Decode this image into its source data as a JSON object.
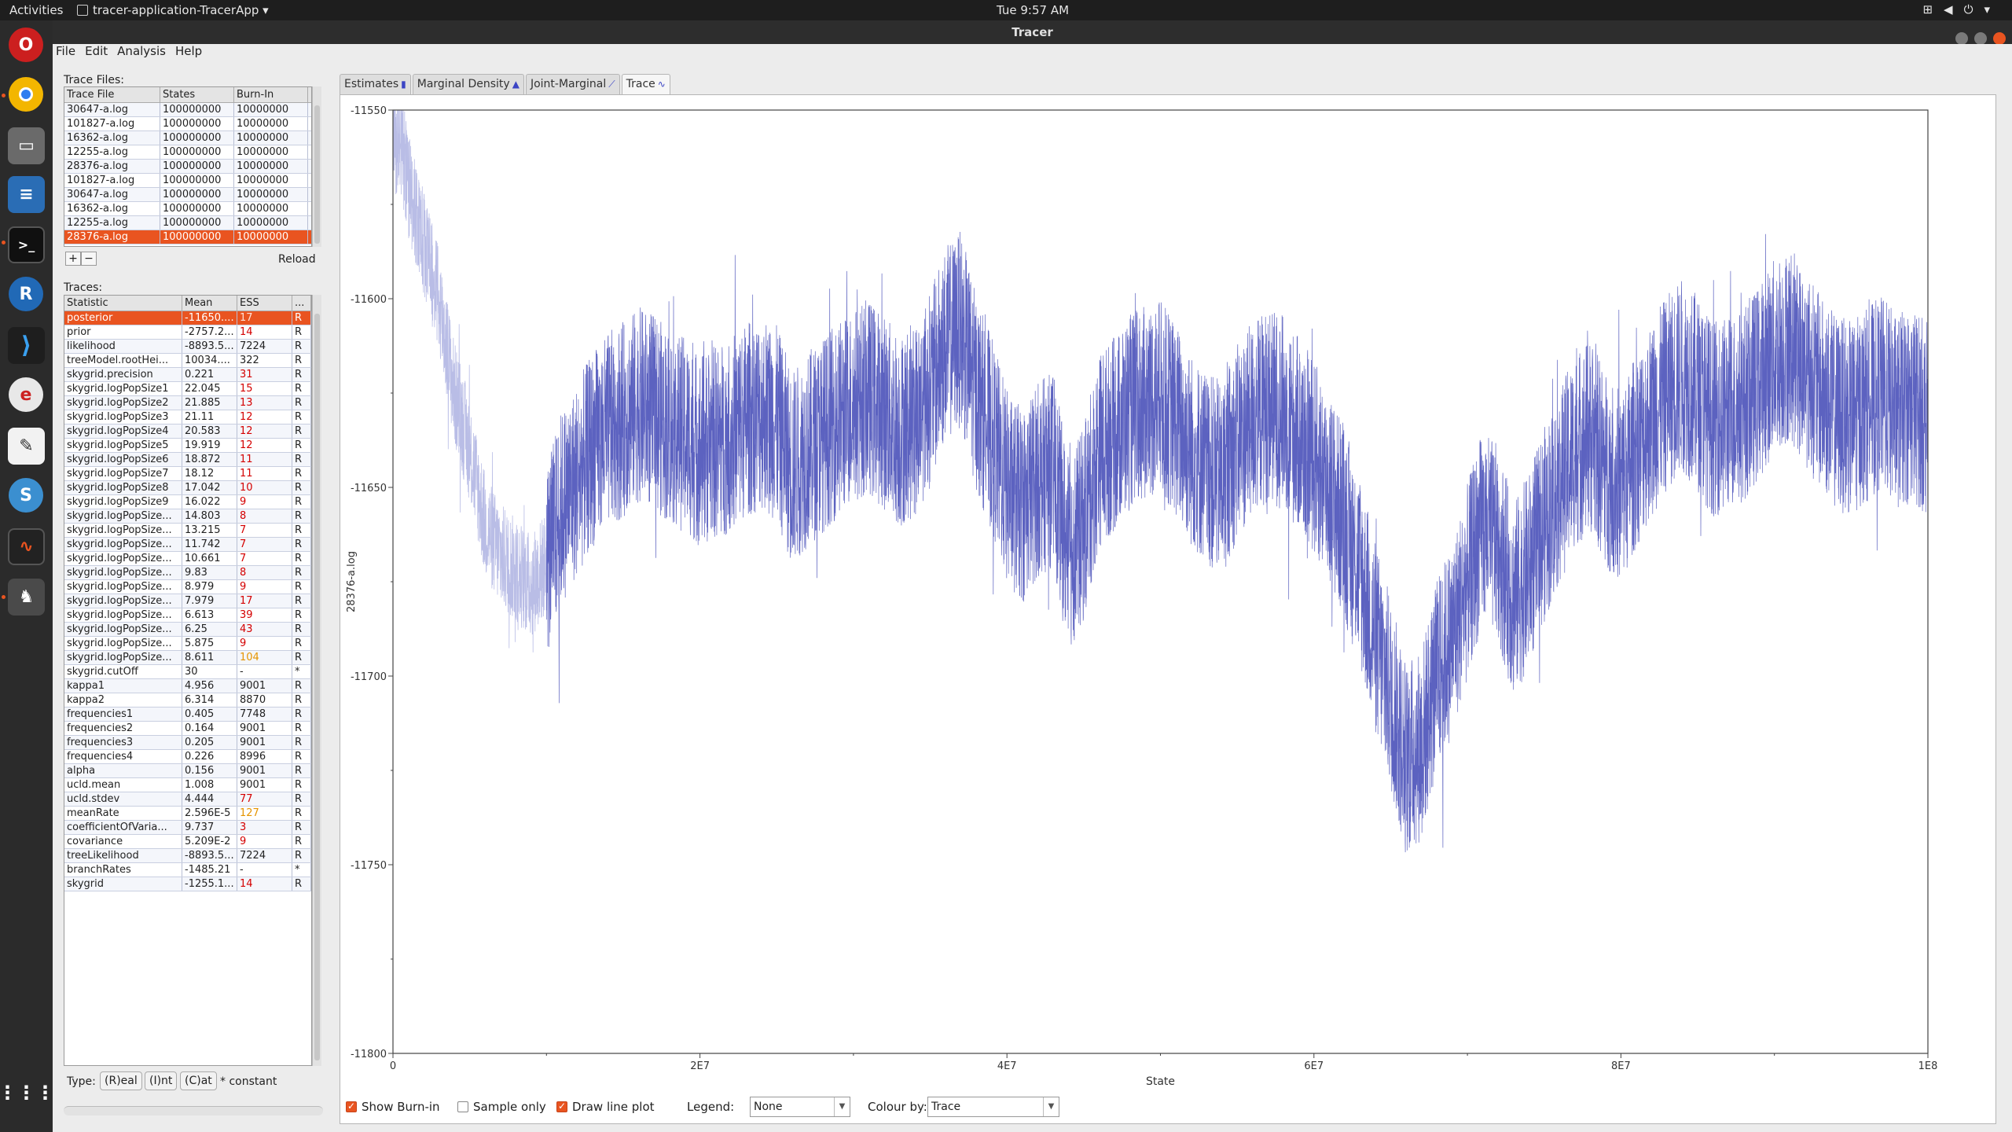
{
  "topbar": {
    "activities": "Activities",
    "app_name": "tracer-application-TracerApp ▾",
    "clock": "Tue  9:57 AM"
  },
  "window": {
    "title": "Tracer"
  },
  "menu": [
    "File",
    "Edit",
    "Analysis",
    "Help"
  ],
  "trace_files": {
    "label": "Trace Files:",
    "columns": [
      "Trace File",
      "States",
      "Burn-In"
    ],
    "rows": [
      [
        "30647-a.log",
        "100000000",
        "10000000"
      ],
      [
        "101827-a.log",
        "100000000",
        "10000000"
      ],
      [
        "16362-a.log",
        "100000000",
        "10000000"
      ],
      [
        "12255-a.log",
        "100000000",
        "10000000"
      ],
      [
        "28376-a.log",
        "100000000",
        "10000000"
      ],
      [
        "101827-a.log",
        "100000000",
        "10000000"
      ],
      [
        "30647-a.log",
        "100000000",
        "10000000"
      ],
      [
        "16362-a.log",
        "100000000",
        "10000000"
      ],
      [
        "12255-a.log",
        "100000000",
        "10000000"
      ],
      [
        "28376-a.log",
        "100000000",
        "10000000"
      ]
    ],
    "selected_index": 9,
    "add": "+",
    "remove": "−",
    "reload": "Reload"
  },
  "traces": {
    "label": "Traces:",
    "columns": [
      "Statistic",
      "Mean",
      "ESS",
      "..."
    ],
    "rows": [
      [
        "posterior",
        "-11650....",
        "17",
        "R",
        "red"
      ],
      [
        "prior",
        "-2757.2...",
        "14",
        "R",
        "red"
      ],
      [
        "likelihood",
        "-8893.5...",
        "7224",
        "R",
        "ok"
      ],
      [
        "treeModel.rootHei...",
        "10034....",
        "322",
        "R",
        "ok"
      ],
      [
        "skygrid.precision",
        "0.221",
        "31",
        "R",
        "red"
      ],
      [
        "skygrid.logPopSize1",
        "22.045",
        "15",
        "R",
        "red"
      ],
      [
        "skygrid.logPopSize2",
        "21.885",
        "13",
        "R",
        "red"
      ],
      [
        "skygrid.logPopSize3",
        "21.11",
        "12",
        "R",
        "red"
      ],
      [
        "skygrid.logPopSize4",
        "20.583",
        "12",
        "R",
        "red"
      ],
      [
        "skygrid.logPopSize5",
        "19.919",
        "12",
        "R",
        "red"
      ],
      [
        "skygrid.logPopSize6",
        "18.872",
        "11",
        "R",
        "red"
      ],
      [
        "skygrid.logPopSize7",
        "18.12",
        "11",
        "R",
        "red"
      ],
      [
        "skygrid.logPopSize8",
        "17.042",
        "10",
        "R",
        "red"
      ],
      [
        "skygrid.logPopSize9",
        "16.022",
        "9",
        "R",
        "red"
      ],
      [
        "skygrid.logPopSize...",
        "14.803",
        "8",
        "R",
        "red"
      ],
      [
        "skygrid.logPopSize...",
        "13.215",
        "7",
        "R",
        "red"
      ],
      [
        "skygrid.logPopSize...",
        "11.742",
        "7",
        "R",
        "red"
      ],
      [
        "skygrid.logPopSize...",
        "10.661",
        "7",
        "R",
        "red"
      ],
      [
        "skygrid.logPopSize...",
        "9.83",
        "8",
        "R",
        "red"
      ],
      [
        "skygrid.logPopSize...",
        "8.979",
        "9",
        "R",
        "red"
      ],
      [
        "skygrid.logPopSize...",
        "7.979",
        "17",
        "R",
        "red"
      ],
      [
        "skygrid.logPopSize...",
        "6.613",
        "39",
        "R",
        "red"
      ],
      [
        "skygrid.logPopSize...",
        "6.25",
        "43",
        "R",
        "red"
      ],
      [
        "skygrid.logPopSize...",
        "5.875",
        "9",
        "R",
        "red"
      ],
      [
        "skygrid.logPopSize...",
        "8.611",
        "104",
        "R",
        "orange"
      ],
      [
        "skygrid.cutOff",
        "30",
        "-",
        "*",
        "ok"
      ],
      [
        "kappa1",
        "4.956",
        "9001",
        "R",
        "ok"
      ],
      [
        "kappa2",
        "6.314",
        "8870",
        "R",
        "ok"
      ],
      [
        "frequencies1",
        "0.405",
        "7748",
        "R",
        "ok"
      ],
      [
        "frequencies2",
        "0.164",
        "9001",
        "R",
        "ok"
      ],
      [
        "frequencies3",
        "0.205",
        "9001",
        "R",
        "ok"
      ],
      [
        "frequencies4",
        "0.226",
        "8996",
        "R",
        "ok"
      ],
      [
        "alpha",
        "0.156",
        "9001",
        "R",
        "ok"
      ],
      [
        "ucld.mean",
        "1.008",
        "9001",
        "R",
        "ok"
      ],
      [
        "ucld.stdev",
        "4.444",
        "77",
        "R",
        "red"
      ],
      [
        "meanRate",
        "2.596E-5",
        "127",
        "R",
        "orange"
      ],
      [
        "coefficientOfVaria...",
        "9.737",
        "3",
        "R",
        "red"
      ],
      [
        "covariance",
        "5.209E-2",
        "9",
        "R",
        "red"
      ],
      [
        "treeLikelihood",
        "-8893.5...",
        "7224",
        "R",
        "ok"
      ],
      [
        "branchRates",
        "-1485.21",
        "-",
        "*",
        "ok"
      ],
      [
        "skygrid",
        "-1255.1...",
        "14",
        "R",
        "red"
      ]
    ],
    "selected_index": 0
  },
  "type_bar": {
    "label": "Type:",
    "real": "(R)eal",
    "int": "(I)nt",
    "cat": "(C)at",
    "constant": "* constant"
  },
  "tabs": [
    {
      "label": "Estimates",
      "icon": "bar-icon"
    },
    {
      "label": "Marginal Density",
      "icon": "density-icon"
    },
    {
      "label": "Joint-Marginal",
      "icon": "scatter-icon"
    },
    {
      "label": "Trace",
      "icon": "trace-icon"
    }
  ],
  "active_tab": "Trace",
  "controls": {
    "show_burnin": {
      "label": "Show Burn-in",
      "checked": true
    },
    "sample_only": {
      "label": "Sample only",
      "checked": false
    },
    "draw_line_plot": {
      "label": "Draw line plot",
      "checked": true
    },
    "legend_label": "Legend:",
    "legend_value": "None",
    "colour_label": "Colour by:",
    "colour_value": "Trace"
  },
  "chart_data": {
    "type": "line",
    "title": "",
    "xlabel": "State",
    "ylabel": "28376-a.log",
    "xlim": [
      0,
      100000000
    ],
    "ylim": [
      -11800,
      -11550
    ],
    "x_ticks": [
      "0",
      "2E7",
      "4E7",
      "6E7",
      "8E7",
      "1E8"
    ],
    "y_ticks": [
      "-11550",
      "-11600",
      "-11650",
      "-11700",
      "-11750",
      "-11800"
    ],
    "burn_in": 10000000,
    "burnin_color": "#b9bde6",
    "line_color": "#3f46b5",
    "series": [
      {
        "x": [
          0,
          500000,
          1000000,
          2000000,
          3000000,
          4000000,
          5000000,
          6000000,
          7000000,
          8000000,
          9000000,
          10000000,
          11000000,
          12000000,
          13000000,
          14000000,
          15000000,
          16000000,
          17000000,
          18000000,
          19000000,
          20000000,
          21000000,
          22000000,
          23000000,
          24000000,
          25000000,
          26000000,
          27000000,
          28000000,
          29000000,
          30000000,
          31000000,
          32000000,
          33000000,
          34000000,
          35000000,
          36000000,
          37000000,
          38000000,
          39000000,
          40000000,
          41000000,
          42000000,
          43000000,
          44000000,
          45000000,
          46000000,
          47000000,
          48000000,
          49000000,
          50000000,
          51000000,
          52000000,
          53000000,
          54000000,
          55000000,
          56000000,
          57000000,
          58000000,
          59000000,
          60000000,
          61000000,
          62000000,
          63000000,
          64000000,
          65000000,
          66000000,
          67000000,
          68000000,
          69000000,
          70000000,
          71000000,
          72000000,
          73000000,
          74000000,
          75000000,
          76000000,
          77000000,
          78000000,
          79000000,
          80000000,
          81000000,
          82000000,
          83000000,
          84000000,
          85000000,
          86000000,
          87000000,
          88000000,
          89000000,
          90000000,
          91000000,
          92000000,
          93000000,
          94000000,
          95000000,
          96000000,
          97000000,
          98000000,
          99000000,
          100000000
        ],
        "y": [
          -11560,
          -11558,
          -11570,
          -11585,
          -11600,
          -11625,
          -11640,
          -11660,
          -11668,
          -11672,
          -11676,
          -11670,
          -11655,
          -11648,
          -11640,
          -11635,
          -11632,
          -11628,
          -11630,
          -11634,
          -11636,
          -11640,
          -11638,
          -11636,
          -11632,
          -11630,
          -11633,
          -11645,
          -11640,
          -11636,
          -11632,
          -11628,
          -11626,
          -11630,
          -11635,
          -11632,
          -11624,
          -11612,
          -11608,
          -11625,
          -11636,
          -11650,
          -11655,
          -11648,
          -11645,
          -11668,
          -11660,
          -11640,
          -11636,
          -11630,
          -11628,
          -11626,
          -11632,
          -11640,
          -11645,
          -11648,
          -11638,
          -11632,
          -11628,
          -11630,
          -11636,
          -11642,
          -11650,
          -11660,
          -11672,
          -11690,
          -11705,
          -11722,
          -11718,
          -11700,
          -11690,
          -11675,
          -11660,
          -11665,
          -11680,
          -11672,
          -11660,
          -11650,
          -11640,
          -11636,
          -11645,
          -11650,
          -11640,
          -11632,
          -11625,
          -11620,
          -11625,
          -11632,
          -11630,
          -11628,
          -11622,
          -11615,
          -11612,
          -11618,
          -11625,
          -11630,
          -11632,
          -11628,
          -11625,
          -11630,
          -11628,
          -11632
        ]
      }
    ]
  }
}
